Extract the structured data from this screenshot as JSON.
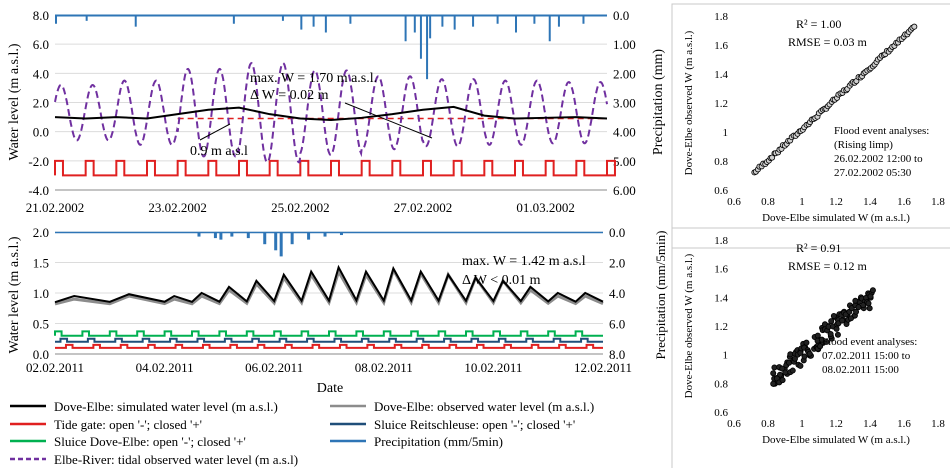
{
  "chart_data": [
    {
      "id": "top-left",
      "type": "line",
      "xlabel": "",
      "ylabel": "Water level (m a.s.l.)",
      "y2label": "Precipitation (mm)",
      "xticks": [
        "21.02.2002",
        "23.02.2002",
        "25.02.2002",
        "27.02.2002",
        "01.03.2002"
      ],
      "yticks": [
        "8.0",
        "6.0",
        "4.0",
        "2.0",
        "0.0",
        "-2.0",
        "-4.0"
      ],
      "y2ticks": [
        "0.0",
        "1.00",
        "2.00",
        "3.00",
        "4.00",
        "5.00",
        "6.00"
      ],
      "ylim": [
        -4,
        8
      ],
      "y2lim": [
        0,
        6
      ],
      "x_range_days": [
        0,
        9
      ],
      "annotations": {
        "max_w": "max. W = 1.70 m a.s.l.",
        "delta_w": "Δ W = 0.02 m",
        "ref_level": "0.9 m a.s.l"
      },
      "series": [
        {
          "key": "elbe",
          "name": "Elbe-River: tidal observed water level (m a.s.l)",
          "color": "#7030a0",
          "style": "dashed",
          "tidal": {
            "mean": 1.3,
            "amplitude": [
              1.9,
              2.2,
              3.0,
              3.4,
              2.9,
              2.5,
              2.3,
              2.2,
              2.1
            ],
            "period_days": 0.5175
          }
        },
        {
          "key": "sim",
          "name": "Dove-Elbe: simulated water level (m a.s.l.)",
          "color": "#000000",
          "style": "solid",
          "x": [
            0,
            0.5,
            1,
            1.5,
            2,
            2.5,
            3,
            3.5,
            4,
            4.5,
            5,
            5.5,
            6,
            6.5,
            7,
            7.5,
            8,
            8.5,
            9
          ],
          "y": [
            1.0,
            0.9,
            1.0,
            0.9,
            1.2,
            1.5,
            1.65,
            1.2,
            0.9,
            0.8,
            0.95,
            1.2,
            1.5,
            1.7,
            1.1,
            0.9,
            0.95,
            1.0,
            0.9
          ]
        },
        {
          "key": "tide_gate",
          "name": "Tide gate: open '-'; closed '+'",
          "color": "#e02020",
          "style": "step",
          "levels": {
            "open": -3.0,
            "closed": -2.0
          }
        },
        {
          "key": "reference",
          "name": "0.9 m a.s.l",
          "color": "#e02020",
          "style": "dashed",
          "y": 0.9
        },
        {
          "key": "precip",
          "name": "Precipitation (mm)",
          "color": "#2e75b6",
          "style": "bars-from-top",
          "events": [
            [
              0.0,
              0.3
            ],
            [
              0.5,
              0.2
            ],
            [
              1.3,
              0.4
            ],
            [
              2.9,
              0.3
            ],
            [
              3.7,
              0.2
            ],
            [
              4.0,
              0.5
            ],
            [
              4.2,
              0.4
            ],
            [
              4.4,
              0.6
            ],
            [
              4.8,
              0.3
            ],
            [
              5.7,
              0.9
            ],
            [
              5.85,
              0.6
            ],
            [
              5.95,
              1.5
            ],
            [
              6.05,
              2.2
            ],
            [
              6.1,
              0.8
            ],
            [
              6.3,
              0.4
            ],
            [
              6.5,
              0.5
            ],
            [
              6.8,
              0.4
            ],
            [
              7.2,
              0.3
            ],
            [
              7.5,
              0.6
            ],
            [
              7.8,
              0.3
            ],
            [
              8.05,
              0.9
            ],
            [
              8.2,
              0.4
            ],
            [
              8.6,
              0.3
            ]
          ]
        }
      ]
    },
    {
      "id": "bottom-left",
      "type": "line",
      "xlabel": "Date",
      "ylabel": "Water level (m a.s.l.)",
      "y2label": "Precipitation (mm/5min)",
      "xticks": [
        "02.02.2011",
        "04.02.2011",
        "06.02.2011",
        "08.02.2011",
        "10.02.2011",
        "12.02.2011"
      ],
      "yticks": [
        "2.0",
        "1.5",
        "1.0",
        "0.5",
        "0.0"
      ],
      "y2ticks": [
        "0.0",
        "2.0",
        "4.0",
        "6.0",
        "8.0"
      ],
      "ylim": [
        0,
        2
      ],
      "y2lim": [
        0,
        8
      ],
      "x_range_days": [
        0,
        10
      ],
      "annotations": {
        "max_w": "max. W = 1.42 m a.s.l",
        "delta_w": "Δ W < 0.01 m"
      },
      "series": [
        {
          "key": "obs",
          "name": "Dove-Elbe: observed water level (m a.s.l.)",
          "color": "#8c8c8c",
          "style": "solid",
          "x": [
            0,
            1,
            2,
            2.5,
            3,
            3.5,
            4,
            4.5,
            5,
            5.5,
            6,
            6.5,
            7,
            7.5,
            8,
            8.5,
            9,
            9.5,
            10
          ],
          "peaks": [
            0.9,
            0.95,
            0.9,
            0.95,
            1.05,
            1.15,
            1.25,
            1.3,
            1.35,
            1.3,
            1.38,
            1.32,
            1.3,
            1.25,
            1.2,
            1.05,
            0.95,
            0.95,
            1.0
          ]
        },
        {
          "key": "sim",
          "name": "Dove-Elbe: simulated water level (m a.s.l.)",
          "color": "#000000",
          "style": "solid",
          "x": [
            0,
            1,
            2,
            2.5,
            3,
            3.5,
            4,
            4.5,
            5,
            5.5,
            6,
            6.5,
            7,
            7.5,
            8,
            8.5,
            9,
            9.5,
            10
          ],
          "peaks": [
            0.95,
            0.98,
            0.95,
            1.0,
            1.1,
            1.2,
            1.3,
            1.35,
            1.42,
            1.35,
            1.4,
            1.35,
            1.3,
            1.25,
            1.2,
            1.1,
            1.0,
            1.0,
            1.05
          ]
        },
        {
          "key": "sluice_dove",
          "name": "Sluice Dove-Elbe: open '-'; closed '+'",
          "color": "#00b050",
          "style": "step",
          "levels": {
            "open": 0.3,
            "closed": 0.37
          }
        },
        {
          "key": "sluice_reit",
          "name": "Sluice Reitschleuse: open '-'; closed '+'",
          "color": "#1f4e79",
          "style": "step",
          "levels": {
            "open": 0.2,
            "closed": 0.25
          }
        },
        {
          "key": "tide_gate",
          "name": "Tide gate: open '-'; closed '+'",
          "color": "#e02020",
          "style": "step",
          "levels": {
            "open": 0.1,
            "closed": 0.15
          }
        },
        {
          "key": "precip",
          "name": "Precipitation (mm/5min)",
          "color": "#2e75b6",
          "style": "bars-from-top",
          "events": [
            [
              2.6,
              0.3
            ],
            [
              2.9,
              0.4
            ],
            [
              3.0,
              0.5
            ],
            [
              3.2,
              0.3
            ],
            [
              3.5,
              0.4
            ],
            [
              3.8,
              0.8
            ],
            [
              4.0,
              1.2
            ],
            [
              4.1,
              1.6
            ],
            [
              4.3,
              0.8
            ],
            [
              4.6,
              0.5
            ],
            [
              4.9,
              0.3
            ],
            [
              5.2,
              0.2
            ]
          ]
        }
      ]
    },
    {
      "id": "top-right",
      "type": "scatter",
      "xlabel": "Dove-Elbe simulated W (m a.s.l.)",
      "ylabel": "Dove-Elbe observed W (m a.s.l.)",
      "xlim": [
        0.6,
        1.8
      ],
      "ylim": [
        0.6,
        1.8
      ],
      "xticks": [
        "0.6",
        "0.8",
        "1",
        "1.2",
        "1.4",
        "1.6",
        "1.8"
      ],
      "yticks": [
        "0.6",
        "0.8",
        "1",
        "1.2",
        "1.4",
        "1.6",
        "1.8"
      ],
      "stats": {
        "r2": "R² = 1.00",
        "rmse": "RMSE = 0.03 m"
      },
      "note": [
        "Flood event analyses:",
        "(Rising limp)",
        "26.02.2002 12:00 to",
        "27.02.2002 05:30"
      ],
      "points_line": {
        "from": [
          0.72,
          0.72
        ],
        "to": [
          1.66,
          1.72
        ],
        "n": 90,
        "spread": 0.01
      }
    },
    {
      "id": "bottom-right",
      "type": "scatter",
      "xlabel": "Dove-Elbe simulated W (m a.s.l.)",
      "ylabel": "Dove-Elbe observed W (m a.s.l.)",
      "xlim": [
        0.6,
        1.8
      ],
      "ylim": [
        0.6,
        1.8
      ],
      "xticks": [
        "0.6",
        "0.8",
        "1",
        "1.2",
        "1.4",
        "1.6",
        "1.8"
      ],
      "yticks": [
        "0.6",
        "0.8",
        "1",
        "1.2",
        "1.4",
        "1.6",
        "1.8"
      ],
      "stats": {
        "r2": "R² = 0.91",
        "rmse": "RMSE = 0.12 m"
      },
      "note": [
        "Flood event analyses:",
        "07.02.2011 15:00 to",
        "08.02.2011 15:00"
      ],
      "points_line": {
        "from": [
          0.82,
          0.82
        ],
        "to": [
          1.42,
          1.42
        ],
        "n": 120,
        "spread": 0.07
      }
    }
  ],
  "legend": [
    {
      "label": "Dove-Elbe: simulated water level (m a.s.l.)",
      "color": "#000000",
      "style": "solid"
    },
    {
      "label": "Dove-Elbe: observed water level (m a.s.l.)",
      "color": "#8c8c8c",
      "style": "solid"
    },
    {
      "label": "Tide gate: open '-'; closed '+'",
      "color": "#e02020",
      "style": "solid"
    },
    {
      "label": "Sluice Reitschleuse: open '-'; closed '+'",
      "color": "#1f4e79",
      "style": "solid"
    },
    {
      "label": "Sluice Dove-Elbe: open '-'; closed '+'",
      "color": "#00b050",
      "style": "solid"
    },
    {
      "label": "Precipitation (mm/5min)",
      "color": "#2e75b6",
      "style": "solid"
    },
    {
      "label": "Elbe-River: tidal observed water level (m a.s.l)",
      "color": "#7030a0",
      "style": "dashed"
    }
  ]
}
